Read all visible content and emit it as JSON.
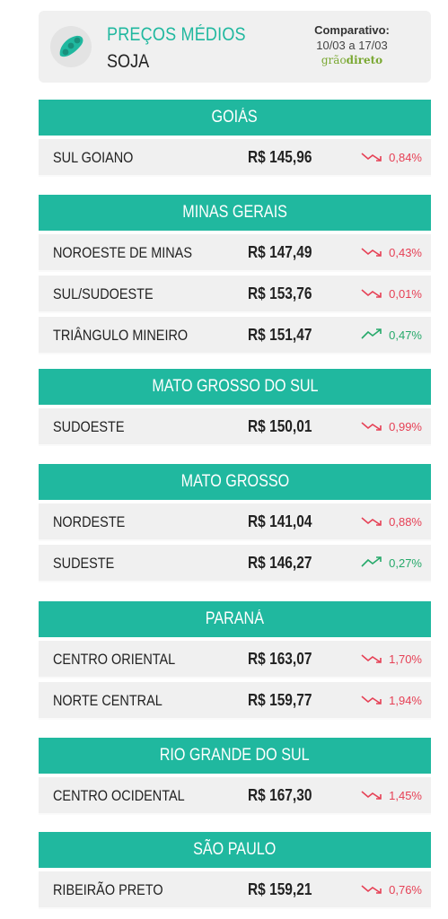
{
  "header": {
    "title": "PREÇOS MÉDIOS",
    "subtitle": "SOJA",
    "comparativo_label": "Comparativo:",
    "period": "10/03 a 17/03",
    "brand_a": "grão",
    "brand_b": "direto"
  },
  "colors": {
    "accent": "#20b89f",
    "down": "#e64055",
    "up": "#26a96a"
  },
  "sections": [
    {
      "name": "GOIÁS",
      "rows": [
        {
          "region": "SUL GOIANO",
          "price": "R$ 145,96",
          "change": "0,84%",
          "dir": "down"
        }
      ]
    },
    {
      "name": "MINAS GERAIS",
      "rows": [
        {
          "region": "NOROESTE DE MINAS",
          "price": "R$ 147,49",
          "change": "0,43%",
          "dir": "down"
        },
        {
          "region": "SUL/SUDOESTE",
          "price": "R$ 153,76",
          "change": "0,01%",
          "dir": "down"
        },
        {
          "region": "TRIÂNGULO MINEIRO",
          "price": "R$ 151,47",
          "change": "0,47%",
          "dir": "up"
        }
      ]
    },
    {
      "name": "MATO GROSSO DO SUL",
      "rows": [
        {
          "region": "SUDOESTE",
          "price": "R$ 150,01",
          "change": "0,99%",
          "dir": "down"
        }
      ]
    },
    {
      "name": "MATO GROSSO",
      "rows": [
        {
          "region": "NORDESTE",
          "price": "R$ 141,04",
          "change": "0,88%",
          "dir": "down"
        },
        {
          "region": "SUDESTE",
          "price": "R$ 146,27",
          "change": "0,27%",
          "dir": "up"
        }
      ]
    },
    {
      "name": "PARANÁ",
      "rows": [
        {
          "region": "CENTRO ORIENTAL",
          "price": "R$ 163,07",
          "change": "1,70%",
          "dir": "down"
        },
        {
          "region": "NORTE CENTRAL",
          "price": "R$ 159,77",
          "change": "1,94%",
          "dir": "down"
        }
      ]
    },
    {
      "name": "RIO GRANDE DO SUL",
      "rows": [
        {
          "region": "CENTRO OCIDENTAL",
          "price": "R$ 167,30",
          "change": "1,45%",
          "dir": "down"
        }
      ]
    },
    {
      "name": "SÃO PAULO",
      "rows": [
        {
          "region": "RIBEIRÃO PRETO",
          "price": "R$ 159,21",
          "change": "0,76%",
          "dir": "down"
        }
      ]
    }
  ]
}
